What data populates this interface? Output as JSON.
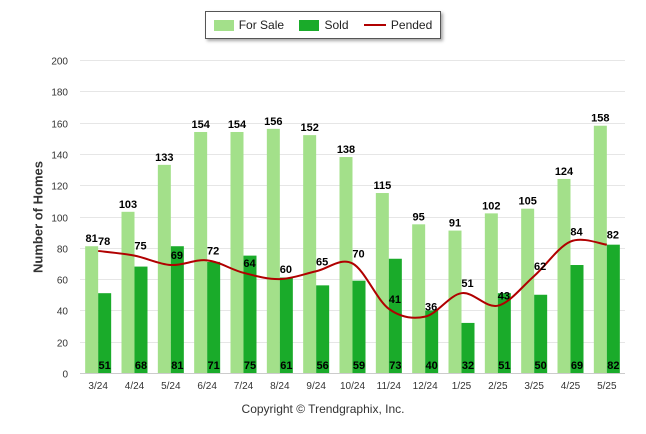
{
  "chart_data": {
    "type": "bar",
    "categories": [
      "3/24",
      "4/24",
      "5/24",
      "6/24",
      "7/24",
      "8/24",
      "9/24",
      "10/24",
      "11/24",
      "12/24",
      "1/25",
      "2/25",
      "3/25",
      "4/25",
      "5/25"
    ],
    "series": [
      {
        "name": "For Sale",
        "type": "bar",
        "color": "#a3e08a",
        "values": [
          81,
          103,
          133,
          154,
          154,
          156,
          152,
          138,
          115,
          95,
          91,
          102,
          105,
          124,
          158
        ]
      },
      {
        "name": "Sold",
        "type": "bar",
        "color": "#1aab2a",
        "values": [
          51,
          68,
          81,
          71,
          75,
          61,
          56,
          59,
          73,
          40,
          32,
          51,
          50,
          69,
          82
        ]
      },
      {
        "name": "Pended",
        "type": "line",
        "color": "#b00000",
        "values": [
          78,
          75,
          69,
          72,
          64,
          60,
          65,
          70,
          41,
          36,
          51,
          43,
          62,
          84,
          82
        ]
      }
    ],
    "ylabel": "Number of Homes",
    "ylim": [
      0,
      200
    ],
    "yticks": [
      0,
      20,
      40,
      60,
      80,
      100,
      120,
      140,
      160,
      180,
      200
    ],
    "grid": true,
    "legend_position": "top-center"
  },
  "footer": {
    "copyright": "Copyright © Trendgraphix, Inc."
  }
}
